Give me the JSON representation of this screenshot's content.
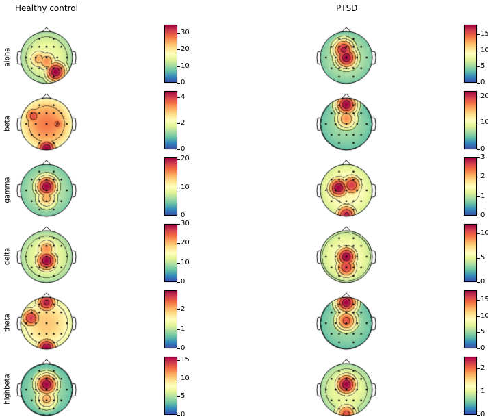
{
  "chart_data": {
    "type": "heatmap",
    "subtype": "eeg-topomap-grid",
    "colormap": "Spectral_r",
    "colormap_stops": [
      "#3b4cab",
      "#3288bd",
      "#66c2a5",
      "#abdda4",
      "#e6f598",
      "#ffffbf",
      "#fee08b",
      "#fdae61",
      "#f46d43",
      "#d53e4f",
      "#9e0142"
    ],
    "columns": [
      {
        "title": "Healthy control"
      },
      {
        "title": "PTSD"
      }
    ],
    "rows": [
      {
        "label": "alpha",
        "maps": [
          {
            "vmin": 0,
            "vmax": 35,
            "ticks": [
              "0",
              "10",
              "20",
              "30"
            ],
            "tick_values": [
              0,
              10,
              20,
              30
            ],
            "hotspots": [
              [
                0.35,
                0.55,
                1.0
              ],
              [
                0.0,
                0.15,
                0.75
              ],
              [
                -0.3,
                0.05,
                0.7
              ]
            ],
            "base": 0.45
          },
          {
            "vmin": 0,
            "vmax": 18,
            "ticks": [
              "0",
              "5",
              "10",
              "15"
            ],
            "tick_values": [
              0,
              5,
              10,
              15
            ],
            "hotspots": [
              [
                0.0,
                0.0,
                1.0
              ],
              [
                -0.1,
                -0.3,
                0.95
              ]
            ],
            "base": 0.35
          }
        ]
      },
      {
        "label": "beta",
        "maps": [
          {
            "vmin": 0,
            "vmax": 4.5,
            "ticks": [
              "0",
              "2",
              "4"
            ],
            "tick_values": [
              0,
              2,
              4
            ],
            "hotspots": [
              [
                0.0,
                0.95,
                1.0
              ],
              [
                -0.5,
                -0.3,
                0.85
              ],
              [
                0.4,
                0.0,
                0.82
              ]
            ],
            "base": 0.78
          },
          {
            "vmin": 0,
            "vmax": 22,
            "ticks": [
              "0",
              "10",
              "20"
            ],
            "tick_values": [
              0,
              10,
              20
            ],
            "hotspots": [
              [
                0.0,
                -0.75,
                1.0
              ],
              [
                0.0,
                -0.2,
                0.75
              ]
            ],
            "base": 0.3
          }
        ]
      },
      {
        "label": "gamma",
        "maps": [
          {
            "vmin": 0,
            "vmax": 20.5,
            "ticks": [
              "0",
              "10",
              "20"
            ],
            "tick_values": [
              0,
              10,
              20
            ],
            "hotspots": [
              [
                0.0,
                -0.15,
                1.0
              ],
              [
                0.0,
                0.3,
                0.7
              ]
            ],
            "base": 0.35
          },
          {
            "vmin": 0,
            "vmax": 3,
            "ticks": [
              "0",
              "1",
              "2",
              "3"
            ],
            "tick_values": [
              0,
              1,
              2,
              3
            ],
            "hotspots": [
              [
                -0.3,
                -0.1,
                1.0
              ],
              [
                0.2,
                -0.2,
                0.9
              ],
              [
                0.0,
                0.95,
                0.95
              ]
            ],
            "base": 0.55
          }
        ]
      },
      {
        "label": "delta",
        "maps": [
          {
            "vmin": 0,
            "vmax": 30,
            "ticks": [
              "0",
              "10",
              "20",
              "30"
            ],
            "tick_values": [
              0,
              10,
              20,
              30
            ],
            "hotspots": [
              [
                0.0,
                0.15,
                1.0
              ],
              [
                0.0,
                -0.3,
                0.75
              ]
            ],
            "base": 0.45
          },
          {
            "vmin": 0,
            "vmax": 12,
            "ticks": [
              "0",
              "5",
              "10"
            ],
            "tick_values": [
              0,
              5,
              10
            ],
            "hotspots": [
              [
                0.0,
                0.0,
                1.0
              ],
              [
                0.0,
                0.4,
                0.9
              ]
            ],
            "base": 0.5
          }
        ]
      },
      {
        "label": "theta",
        "maps": [
          {
            "vmin": 0,
            "vmax": 3,
            "ticks": [
              "0",
              "1",
              "2"
            ],
            "tick_values": [
              0,
              1,
              2
            ],
            "hotspots": [
              [
                0.0,
                -0.8,
                0.95
              ],
              [
                0.0,
                0.95,
                1.0
              ],
              [
                -0.6,
                -0.2,
                0.9
              ]
            ],
            "base": 0.65
          },
          {
            "vmin": 0,
            "vmax": 18,
            "ticks": [
              "0",
              "5",
              "10",
              "15"
            ],
            "tick_values": [
              0,
              5,
              10,
              15
            ],
            "hotspots": [
              [
                0.0,
                -0.8,
                1.0
              ],
              [
                0.0,
                -0.1,
                0.85
              ]
            ],
            "base": 0.3
          }
        ]
      },
      {
        "label": "highbeta",
        "maps": [
          {
            "vmin": 0,
            "vmax": 16,
            "ticks": [
              "0",
              "5",
              "10",
              "15"
            ],
            "tick_values": [
              0,
              5,
              10,
              15
            ],
            "hotspots": [
              [
                0.0,
                -0.2,
                1.0
              ],
              [
                0.0,
                0.35,
                0.7
              ]
            ],
            "base": 0.3
          },
          {
            "vmin": 0,
            "vmax": 2.5,
            "ticks": [
              "0",
              "1",
              "2"
            ],
            "tick_values": [
              0,
              1,
              2
            ],
            "hotspots": [
              [
                0.0,
                -0.2,
                1.0
              ],
              [
                0.0,
                0.95,
                0.85
              ]
            ],
            "base": 0.45
          }
        ]
      }
    ]
  }
}
